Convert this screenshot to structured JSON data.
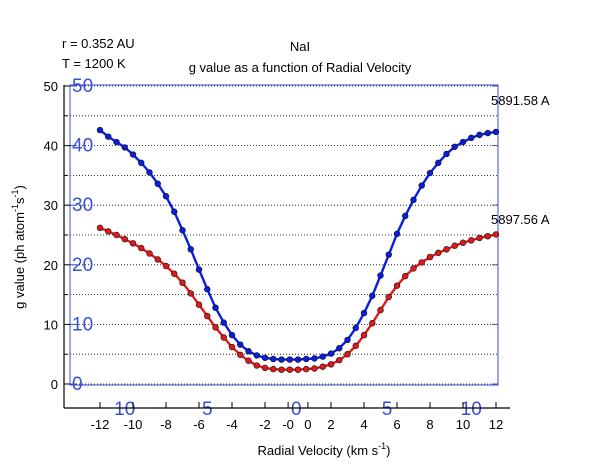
{
  "chart_data": {
    "type": "line",
    "title": "NaI",
    "subtitle": "g value as a function of Radial Velocity",
    "annotations": {
      "distance": "r = 0.352 AU",
      "temperature": "T = 1200 K"
    },
    "xlabel_main": "Radial Velocity (km s",
    "xlabel_sup": "-1",
    "xlabel_end": ")",
    "ylabel_main": "g value (ph atom",
    "ylabel_sup1": "-1",
    "ylabel_mid": "s",
    "ylabel_sup2": "-1",
    "ylabel_end": ")",
    "xlim": [
      -12,
      12
    ],
    "ylim": [
      0,
      50
    ],
    "x_ticks": [
      "-12",
      "-10",
      "-8",
      "-6",
      "-4",
      "-2",
      "-0",
      "0",
      "2",
      "4",
      "6",
      "8",
      "10",
      "12"
    ],
    "x_tick_values": [
      -12,
      -10,
      -8,
      -6,
      -4,
      -2,
      -0.6,
      0.6,
      2,
      4,
      6,
      8,
      10,
      12
    ],
    "y_ticks": [
      0,
      10,
      20,
      30,
      40,
      50
    ],
    "overlay_x_ticks": [
      "10",
      "5",
      "0",
      "5",
      "10"
    ],
    "overlay_x_values": [
      -10.5,
      -5.5,
      -0.1,
      5.4,
      10.5
    ],
    "overlay_y_ticks": [
      "0",
      "10",
      "20",
      "30",
      "40",
      "50"
    ],
    "grid": {
      "horizontal_dotted": true
    },
    "series": [
      {
        "name": "5891.58 A",
        "color": "#0a1ee0",
        "x": [
          -12,
          -11.5,
          -11,
          -10.5,
          -10,
          -9.5,
          -9,
          -8.5,
          -8,
          -7.5,
          -7,
          -6.5,
          -6,
          -5.5,
          -5,
          -4.5,
          -4,
          -3.5,
          -3,
          -2.5,
          -2,
          -1.5,
          -1,
          -0.5,
          0,
          0.5,
          1,
          1.5,
          2,
          2.5,
          3,
          3.5,
          4,
          4.5,
          5,
          5.5,
          6,
          6.5,
          7,
          7.5,
          8,
          8.5,
          9,
          9.5,
          10,
          10.5,
          11,
          11.5,
          12
        ],
        "values": [
          42.6,
          41.5,
          40.6,
          39.7,
          38.5,
          37.1,
          35.5,
          33.6,
          31.5,
          28.9,
          25.8,
          22.6,
          19.2,
          15.9,
          12.8,
          10.3,
          8.2,
          6.6,
          5.5,
          4.8,
          4.4,
          4.2,
          4.1,
          4.1,
          4.1,
          4.2,
          4.3,
          4.6,
          5.1,
          6.0,
          7.4,
          9.4,
          11.9,
          14.8,
          18.2,
          21.7,
          25.2,
          28.2,
          30.9,
          33.3,
          35.4,
          37.1,
          38.6,
          39.8,
          40.6,
          41.3,
          41.8,
          42.1,
          42.3
        ]
      },
      {
        "name": "5897.56 A",
        "color": "#e01a1a",
        "x": [
          -12,
          -11.5,
          -11,
          -10.5,
          -10,
          -9.5,
          -9,
          -8.5,
          -8,
          -7.5,
          -7,
          -6.5,
          -6,
          -5.5,
          -5,
          -4.5,
          -4,
          -3.5,
          -3,
          -2.5,
          -2,
          -1.5,
          -1,
          -0.5,
          0,
          0.5,
          1,
          1.5,
          2,
          2.5,
          3,
          3.5,
          4,
          4.5,
          5,
          5.5,
          6,
          6.5,
          7,
          7.5,
          8,
          8.5,
          9,
          9.5,
          10,
          10.5,
          11,
          11.5,
          12
        ],
        "values": [
          26.2,
          25.6,
          25.0,
          24.3,
          23.6,
          22.8,
          21.9,
          20.9,
          19.8,
          18.5,
          17.0,
          15.2,
          13.3,
          11.4,
          9.5,
          7.8,
          6.2,
          4.9,
          3.9,
          3.1,
          2.7,
          2.5,
          2.4,
          2.4,
          2.4,
          2.5,
          2.6,
          2.9,
          3.3,
          4.0,
          5.0,
          6.4,
          8.2,
          10.2,
          12.4,
          14.6,
          16.5,
          18.1,
          19.4,
          20.4,
          21.3,
          22.0,
          22.6,
          23.2,
          23.7,
          24.1,
          24.5,
          24.8,
          25.1
        ]
      }
    ]
  }
}
